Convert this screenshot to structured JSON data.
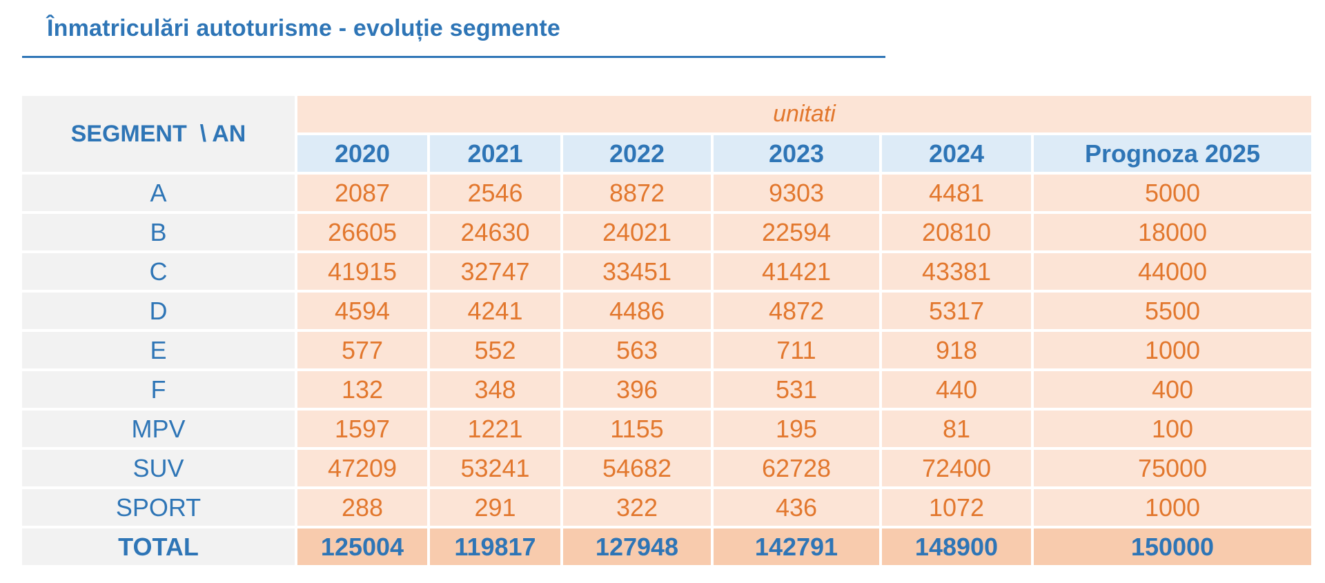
{
  "title": "Înmatriculări autoturisme - evoluție segmente",
  "table": {
    "corner_label": "SEGMENT  \\ AN",
    "unit_label": "unitati",
    "columns": [
      "2020",
      "2021",
      "2022",
      "2023",
      "2024",
      "Prognoza 2025"
    ],
    "rows": [
      {
        "segment": "A",
        "values": [
          "2087",
          "2546",
          "8872",
          "9303",
          "4481",
          "5000"
        ]
      },
      {
        "segment": "B",
        "values": [
          "26605",
          "24630",
          "24021",
          "22594",
          "20810",
          "18000"
        ]
      },
      {
        "segment": "C",
        "values": [
          "41915",
          "32747",
          "33451",
          "41421",
          "43381",
          "44000"
        ]
      },
      {
        "segment": "D",
        "values": [
          "4594",
          "4241",
          "4486",
          "4872",
          "5317",
          "5500"
        ]
      },
      {
        "segment": "E",
        "values": [
          "577",
          "552",
          "563",
          "711",
          "918",
          "1000"
        ]
      },
      {
        "segment": "F",
        "values": [
          "132",
          "348",
          "396",
          "531",
          "440",
          "400"
        ]
      },
      {
        "segment": "MPV",
        "values": [
          "1597",
          "1221",
          "1155",
          "195",
          "81",
          "100"
        ]
      },
      {
        "segment": "SUV",
        "values": [
          "47209",
          "53241",
          "54682",
          "62728",
          "72400",
          "75000"
        ]
      },
      {
        "segment": "SPORT",
        "values": [
          "288",
          "291",
          "322",
          "436",
          "1072",
          "1000"
        ]
      }
    ],
    "total": {
      "segment": "TOTAL",
      "values": [
        "125004",
        "119817",
        "127948",
        "142791",
        "148900",
        "150000"
      ]
    }
  },
  "colors": {
    "title_blue": "#2e75b6",
    "value_orange": "#e2772d",
    "cell_peach": "#fce4d6",
    "total_peach": "#f8cbad",
    "header_blue": "#ddebf7",
    "label_gray": "#f2f2f2"
  }
}
